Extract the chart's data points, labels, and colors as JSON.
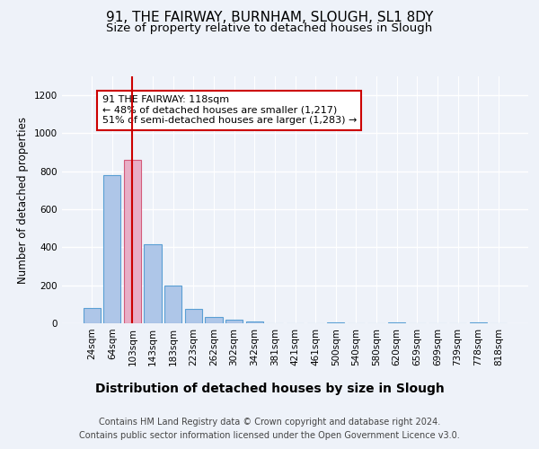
{
  "title1": "91, THE FAIRWAY, BURNHAM, SLOUGH, SL1 8DY",
  "title2": "Size of property relative to detached houses in Slough",
  "xlabel": "Distribution of detached houses by size in Slough",
  "ylabel": "Number of detached properties",
  "footnote": "Contains HM Land Registry data © Crown copyright and database right 2024.\nContains public sector information licensed under the Open Government Licence v3.0.",
  "bar_labels": [
    "24sqm",
    "64sqm",
    "103sqm",
    "143sqm",
    "183sqm",
    "223sqm",
    "262sqm",
    "302sqm",
    "342sqm",
    "381sqm",
    "421sqm",
    "461sqm",
    "500sqm",
    "540sqm",
    "580sqm",
    "620sqm",
    "659sqm",
    "699sqm",
    "739sqm",
    "778sqm",
    "818sqm"
  ],
  "bar_values": [
    80,
    780,
    860,
    415,
    200,
    75,
    35,
    20,
    10,
    0,
    0,
    0,
    5,
    0,
    0,
    5,
    0,
    0,
    0,
    5,
    0
  ],
  "bar_color": "#aec6e8",
  "bar_edge_color": "#5a9fd4",
  "highlight_bar_index": 2,
  "highlight_bar_color": "#e8aec6",
  "highlight_bar_edge_color": "#d45a7a",
  "vline_x": 2,
  "vline_color": "#cc0000",
  "ylim": [
    0,
    1300
  ],
  "yticks": [
    0,
    200,
    400,
    600,
    800,
    1000,
    1200
  ],
  "annotation_text": "91 THE FAIRWAY: 118sqm\n← 48% of detached houses are smaller (1,217)\n51% of semi-detached houses are larger (1,283) →",
  "annotation_box_edge_color": "#cc0000",
  "background_color": "#eef2f9",
  "plot_bg_color": "#eef2f9",
  "grid_color": "#ffffff",
  "title1_fontsize": 11,
  "title2_fontsize": 9.5,
  "xlabel_fontsize": 10,
  "ylabel_fontsize": 8.5,
  "tick_fontsize": 7.5,
  "annotation_fontsize": 8
}
